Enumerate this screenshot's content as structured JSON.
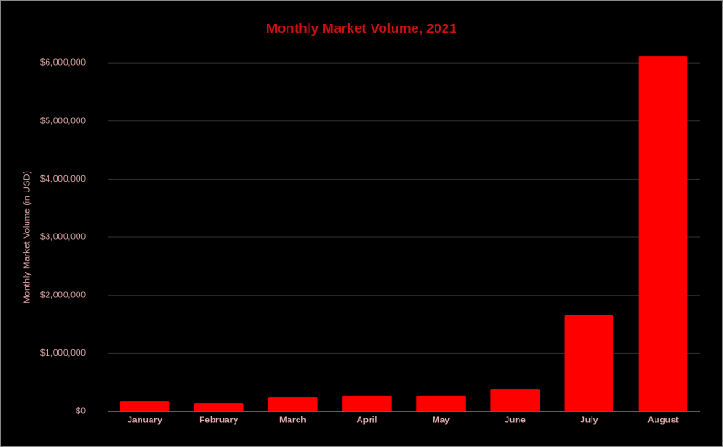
{
  "chart_data": {
    "type": "bar",
    "title": "Monthly Market Volume, 2021",
    "y_label": "Monthly Market Volume (in USD)",
    "categories": [
      "January",
      "February",
      "March",
      "April",
      "May",
      "June",
      "July",
      "August"
    ],
    "values": [
      170000,
      140000,
      250000,
      270000,
      270000,
      390000,
      1665000,
      6125000
    ],
    "color": "#ff0000",
    "ylim": [
      0,
      6300000
    ],
    "yticks": [
      {
        "value": 0,
        "label": "$0"
      },
      {
        "value": 1000000,
        "label": "$1,000,000"
      },
      {
        "value": 2000000,
        "label": "$2,000,000"
      },
      {
        "value": 3000000,
        "label": "$3,000,000"
      },
      {
        "value": 4000000,
        "label": "$4,000,000"
      },
      {
        "value": 5000000,
        "label": "$5,000,000"
      },
      {
        "value": 6000000,
        "label": "$6,000,000"
      }
    ],
    "grid": true
  }
}
